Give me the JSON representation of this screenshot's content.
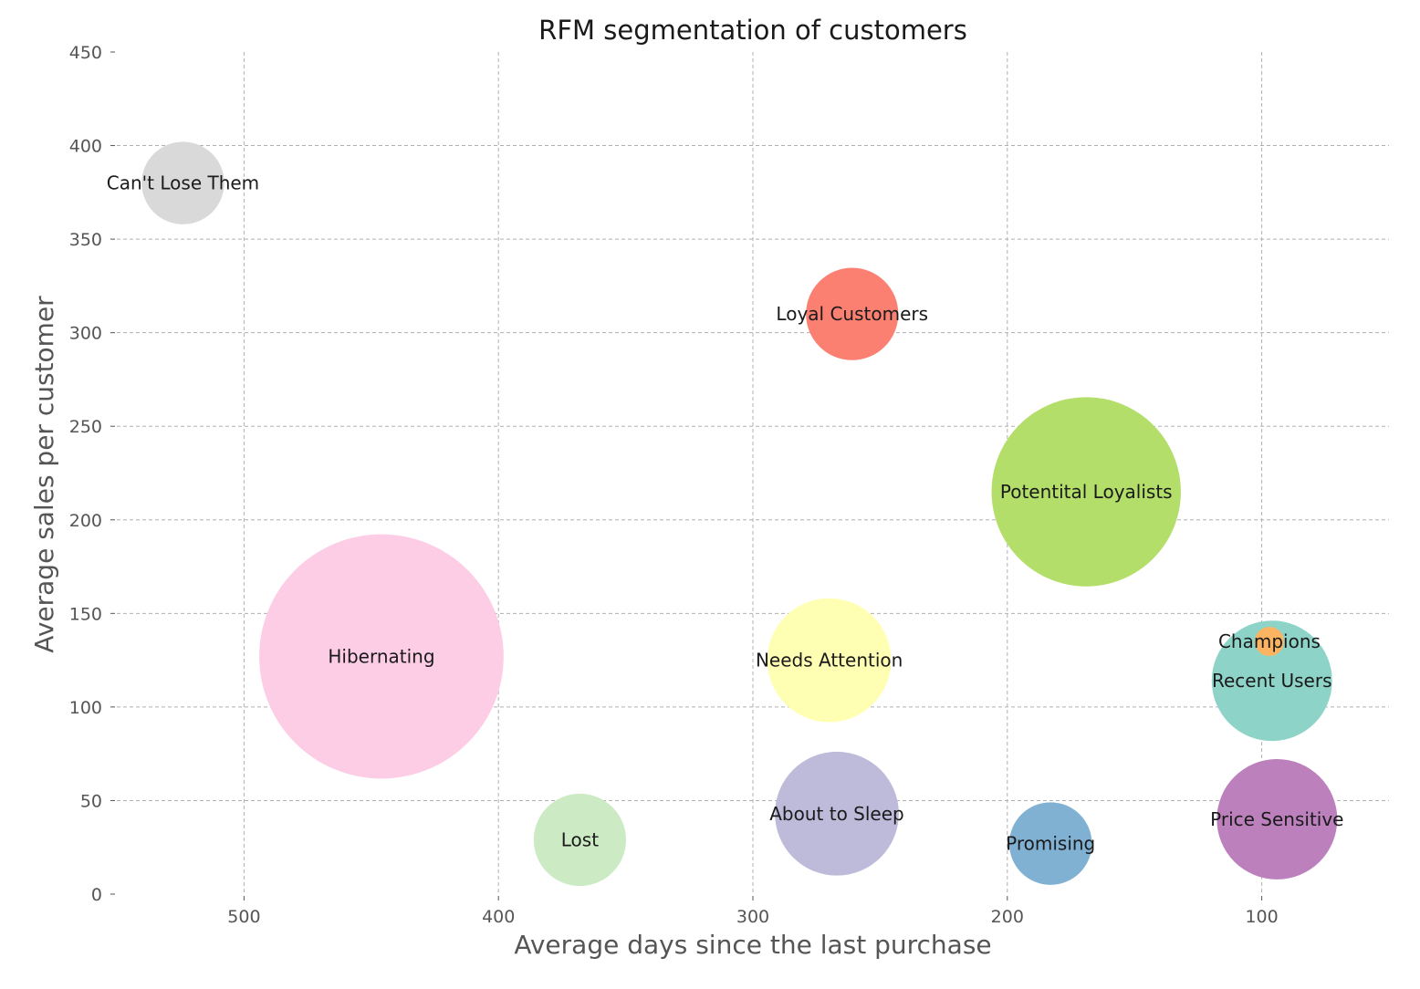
{
  "chart_data": {
    "type": "scatter",
    "title": "RFM segmentation of customers",
    "xlabel": "Average days since the last purchase",
    "ylabel": "Average sales per customer",
    "xlim": [
      550,
      50
    ],
    "ylim": [
      0,
      450
    ],
    "x_inverted": true,
    "x_ticks": [
      500,
      400,
      300,
      200,
      100
    ],
    "y_ticks": [
      0,
      50,
      100,
      150,
      200,
      250,
      300,
      350,
      400,
      450
    ],
    "grid": true,
    "points": [
      {
        "label": "Can't Lose Them",
        "x": 524,
        "y": 380,
        "size": 8,
        "color": "#d9d9d9"
      },
      {
        "label": "Loyal Customers",
        "x": 261,
        "y": 310,
        "size": 10,
        "color": "#fb8072"
      },
      {
        "label": "Potentital Loyalists",
        "x": 169,
        "y": 215,
        "size": 42,
        "color": "#b3de69"
      },
      {
        "label": "Hibernating",
        "x": 446,
        "y": 127,
        "size": 70,
        "color": "#fccde5"
      },
      {
        "label": "Needs Attention",
        "x": 270,
        "y": 125,
        "size": 18,
        "color": "#ffffb3"
      },
      {
        "label": "Champions",
        "x": 97,
        "y": 135,
        "size": 1,
        "color": "#fdb462"
      },
      {
        "label": "Recent Users",
        "x": 96,
        "y": 114,
        "size": 17,
        "color": "#8dd3c7"
      },
      {
        "label": "Lost",
        "x": 368,
        "y": 29,
        "size": 10,
        "color": "#ccebc5"
      },
      {
        "label": "About to Sleep",
        "x": 267,
        "y": 43,
        "size": 18,
        "color": "#bebada"
      },
      {
        "label": "Promising",
        "x": 183,
        "y": 27,
        "size": 8,
        "color": "#80b1d3"
      },
      {
        "label": "Price Sensitive",
        "x": 94,
        "y": 40,
        "size": 17,
        "color": "#bc80bd"
      }
    ]
  }
}
